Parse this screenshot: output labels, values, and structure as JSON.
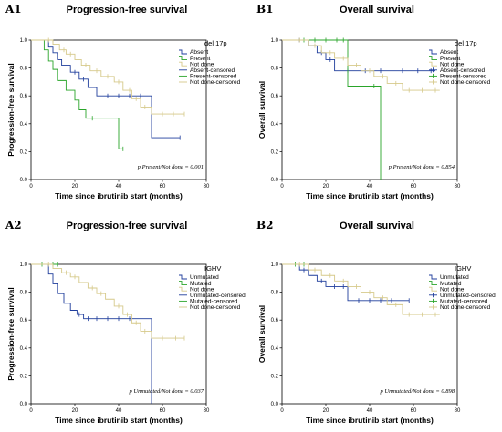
{
  "chart_data": [
    {
      "type": "line",
      "panel_label": "A1",
      "title": "Progression-free survival",
      "xlabel": "Time since ibrutinib start (months)",
      "ylabel": "Progression-free survival",
      "xlim": [
        0,
        80
      ],
      "ylim": [
        0,
        1.0
      ],
      "xticks": [
        "0",
        "20",
        "40",
        "60",
        "80"
      ],
      "yticks": [
        "0.0",
        "0.2",
        "0.4",
        "0.6",
        "0.8",
        "1.0"
      ],
      "legend_title": "del 17p",
      "legend_position": "top-right",
      "legend": [
        "Absent",
        "Present",
        "Not done",
        "Absent-censored",
        "Present-censored",
        "Not done-censored"
      ],
      "annotation": "p Present/Not done = 0.001",
      "series": [
        {
          "name": "Absent",
          "color": "#1f3d9c",
          "x": [
            0,
            8,
            10,
            12,
            14,
            18,
            22,
            26,
            30,
            55,
            68
          ],
          "y": [
            1.0,
            0.95,
            0.91,
            0.86,
            0.82,
            0.77,
            0.72,
            0.66,
            0.6,
            0.3,
            0.3
          ],
          "censor_x": [
            20,
            24,
            35,
            40,
            45,
            50,
            68
          ]
        },
        {
          "name": "Present",
          "color": "#2aa52a",
          "x": [
            0,
            6,
            8,
            10,
            12,
            16,
            20,
            22,
            25,
            40,
            42
          ],
          "y": [
            1.0,
            0.93,
            0.85,
            0.79,
            0.71,
            0.64,
            0.57,
            0.5,
            0.44,
            0.22,
            0.22
          ],
          "censor_x": [
            28,
            42
          ]
        },
        {
          "name": "Not done",
          "color": "#d6c98a",
          "x": [
            0,
            10,
            13,
            16,
            20,
            23,
            27,
            32,
            38,
            42,
            46,
            50,
            55,
            70
          ],
          "y": [
            1.0,
            0.97,
            0.93,
            0.9,
            0.86,
            0.82,
            0.78,
            0.74,
            0.7,
            0.64,
            0.58,
            0.52,
            0.47,
            0.47
          ],
          "censor_x": [
            8,
            15,
            18,
            25,
            30,
            35,
            40,
            45,
            48,
            52,
            60,
            65,
            70
          ]
        }
      ]
    },
    {
      "type": "line",
      "panel_label": "B1",
      "title": "Overall survival",
      "xlabel": "Time since ibrutinib start (months)",
      "ylabel": "Overall survival",
      "xlim": [
        0,
        80
      ],
      "ylim": [
        0,
        1.0
      ],
      "xticks": [
        "0",
        "20",
        "40",
        "60",
        "80"
      ],
      "yticks": [
        "0.0",
        "0.2",
        "0.4",
        "0.6",
        "0.8",
        "1.0"
      ],
      "legend_title": "del 17p",
      "legend_position": "top-right",
      "legend": [
        "Absent",
        "Present",
        "Not done",
        "Absent-censored",
        "Present-censored",
        "Not done-censored"
      ],
      "annotation": "p Present/Not done = 0.854",
      "series": [
        {
          "name": "Absent",
          "color": "#1f3d9c",
          "x": [
            0,
            12,
            16,
            20,
            24,
            70
          ],
          "y": [
            1.0,
            0.96,
            0.91,
            0.86,
            0.78,
            0.78
          ],
          "censor_x": [
            8,
            18,
            22,
            30,
            38,
            45,
            55,
            62,
            68
          ]
        },
        {
          "name": "Present",
          "color": "#2aa52a",
          "x": [
            0,
            30,
            45,
            45
          ],
          "y": [
            1.0,
            0.67,
            0.67,
            0.0
          ],
          "censor_x": [
            10,
            15,
            20,
            25,
            28,
            42
          ]
        },
        {
          "name": "Not done",
          "color": "#d6c98a",
          "x": [
            0,
            12,
            18,
            24,
            30,
            36,
            42,
            48,
            55,
            72
          ],
          "y": [
            1.0,
            0.96,
            0.91,
            0.87,
            0.82,
            0.78,
            0.74,
            0.69,
            0.64,
            0.64
          ],
          "censor_x": [
            8,
            15,
            22,
            28,
            34,
            40,
            46,
            52,
            58,
            64,
            70
          ]
        }
      ]
    },
    {
      "type": "line",
      "panel_label": "A2",
      "title": "Progression-free survival",
      "xlabel": "Time since ibrutinib start (months)",
      "ylabel": "Progression-free survival",
      "xlim": [
        0,
        80
      ],
      "ylim": [
        0,
        1.0
      ],
      "xticks": [
        "0",
        "20",
        "40",
        "60",
        "80"
      ],
      "yticks": [
        "0.0",
        "0.2",
        "0.4",
        "0.6",
        "0.8",
        "1.0"
      ],
      "legend_title": "IGHV",
      "legend_position": "top-right",
      "legend": [
        "Unmutated",
        "Mutated",
        "Not done",
        "Unmutated-censored",
        "Mutated-censored",
        "Not done-censored"
      ],
      "annotation": "p Unmutated/Not done = 0.037",
      "series": [
        {
          "name": "Unmutated",
          "color": "#1f3d9c",
          "x": [
            0,
            8,
            10,
            12,
            15,
            18,
            21,
            24,
            55,
            55
          ],
          "y": [
            1.0,
            0.93,
            0.86,
            0.79,
            0.72,
            0.67,
            0.64,
            0.61,
            0.61,
            0.0
          ],
          "censor_x": [
            22,
            26,
            30,
            35,
            40,
            45
          ]
        },
        {
          "name": "Mutated",
          "color": "#2aa52a",
          "x": [
            0,
            12
          ],
          "y": [
            1.0,
            1.0
          ],
          "censor_x": [
            5,
            10,
            12
          ]
        },
        {
          "name": "Not done",
          "color": "#d6c98a",
          "x": [
            0,
            10,
            14,
            18,
            22,
            26,
            30,
            34,
            38,
            42,
            46,
            50,
            55,
            70
          ],
          "y": [
            1.0,
            0.97,
            0.94,
            0.91,
            0.87,
            0.83,
            0.79,
            0.75,
            0.7,
            0.64,
            0.58,
            0.52,
            0.47,
            0.47
          ],
          "censor_x": [
            8,
            16,
            20,
            28,
            32,
            36,
            40,
            44,
            48,
            52,
            60,
            66,
            70
          ]
        }
      ]
    },
    {
      "type": "line",
      "panel_label": "B2",
      "title": "Overall survival",
      "xlabel": "Time since ibrutinib start (months)",
      "ylabel": "Overall survival",
      "xlim": [
        0,
        80
      ],
      "ylim": [
        0,
        1.0
      ],
      "xticks": [
        "0",
        "20",
        "40",
        "60",
        "80"
      ],
      "yticks": [
        "0.0",
        "0.2",
        "0.4",
        "0.6",
        "0.8",
        "1.0"
      ],
      "legend_title": "IGHV",
      "legend_position": "top-right",
      "legend": [
        "Unmutated",
        "Mutated",
        "Not done",
        "Unmutated-censored",
        "Mutated-censored",
        "Not done-censored"
      ],
      "annotation": "p Unmutated/Not done = 0.898",
      "series": [
        {
          "name": "Unmutated",
          "color": "#1f3d9c",
          "x": [
            0,
            8,
            12,
            16,
            20,
            30,
            58
          ],
          "y": [
            1.0,
            0.96,
            0.92,
            0.88,
            0.84,
            0.74,
            0.74
          ],
          "censor_x": [
            10,
            18,
            24,
            28,
            35,
            40,
            45,
            50,
            58
          ]
        },
        {
          "name": "Mutated",
          "color": "#2aa52a",
          "x": [
            0,
            10
          ],
          "y": [
            1.0,
            1.0
          ],
          "censor_x": [
            6,
            10
          ]
        },
        {
          "name": "Not done",
          "color": "#d6c98a",
          "x": [
            0,
            12,
            18,
            24,
            30,
            36,
            42,
            48,
            55,
            72
          ],
          "y": [
            1.0,
            0.96,
            0.92,
            0.88,
            0.84,
            0.8,
            0.76,
            0.71,
            0.64,
            0.64
          ],
          "censor_x": [
            8,
            15,
            22,
            28,
            34,
            40,
            46,
            52,
            58,
            64,
            70
          ]
        }
      ]
    }
  ]
}
